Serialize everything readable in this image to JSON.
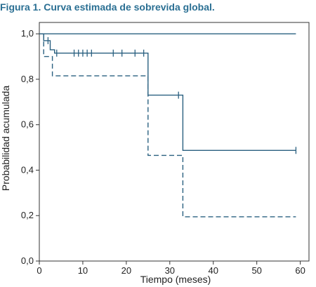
{
  "title": "Figura 1. Curva estimada de sobrevida global.",
  "colors": {
    "title": "#2a6f93",
    "series": "#2a6080",
    "frame": "#333333"
  },
  "chart_data": {
    "type": "line",
    "title": "Figura 1. Curva estimada de sobrevida global.",
    "xlabel": "Tiempo  (meses)",
    "ylabel": "Probabilidad acumulada",
    "xlim": [
      0,
      60
    ],
    "ylim": [
      0,
      1
    ],
    "xticks": [
      0,
      10,
      20,
      30,
      40,
      50,
      60
    ],
    "yticks": [
      0,
      0.2,
      0.4,
      0.6,
      0.8,
      1.0
    ],
    "xtick_labels": [
      "0",
      "10",
      "20",
      "30",
      "40",
      "50",
      "60"
    ],
    "ytick_labels": [
      "0,0",
      "0,2",
      "0,4",
      "0,6",
      "0,8",
      "1,0"
    ],
    "grid": false,
    "legend": "none",
    "series": [
      {
        "style": "solid",
        "steps": [
          [
            0,
            1.0
          ],
          [
            1,
            1.0
          ],
          [
            1,
            0.97
          ],
          [
            2.5,
            0.97
          ],
          [
            2.5,
            0.93
          ],
          [
            3.5,
            0.93
          ],
          [
            3.5,
            0.915
          ],
          [
            25,
            0.915
          ],
          [
            25,
            0.73
          ],
          [
            33,
            0.73
          ],
          [
            33,
            0.487
          ],
          [
            59,
            0.487
          ]
        ],
        "censored": [
          2,
          4,
          8,
          9,
          10,
          11,
          12,
          17,
          19,
          22,
          24,
          32,
          59
        ]
      },
      {
        "style": "solid",
        "steps": [
          [
            0,
            1.0
          ],
          [
            59,
            1.0
          ]
        ],
        "censored": []
      },
      {
        "style": "dashed",
        "steps": [
          [
            1,
            1.0
          ],
          [
            1,
            0.9
          ],
          [
            3,
            0.9
          ],
          [
            3,
            0.815
          ],
          [
            25,
            0.815
          ],
          [
            25,
            0.465
          ],
          [
            33,
            0.465
          ],
          [
            33,
            0.195
          ],
          [
            59,
            0.195
          ]
        ],
        "censored": []
      }
    ]
  }
}
